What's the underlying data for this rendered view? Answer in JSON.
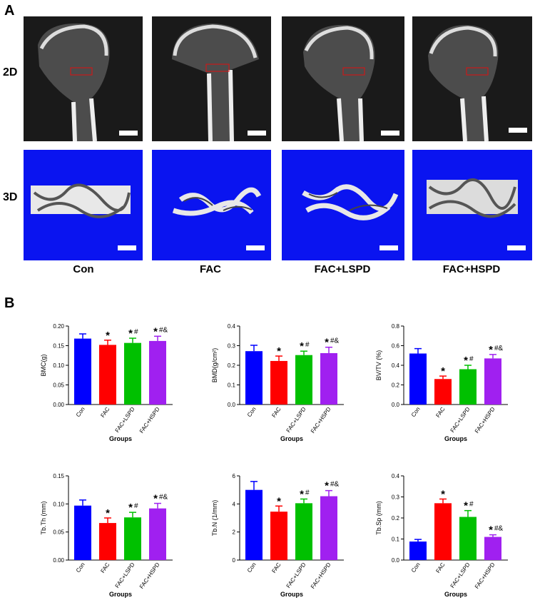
{
  "panels": {
    "a": "A",
    "b": "B"
  },
  "rows": {
    "r2d": "2D",
    "r3d": "3D"
  },
  "groups": [
    "Con",
    "FAC",
    "FAC+LSPD",
    "FAC+HSPD"
  ],
  "colors": {
    "Con": "#0000ff",
    "FAC": "#ff0000",
    "FAC+LSPD": "#00c000",
    "FAC+HSPD": "#a020f0",
    "tile_3d": "#0a14f0"
  },
  "chart_data": [
    {
      "type": "bar",
      "ylabel": "BMC(g)",
      "xlabel": "Groups",
      "categories": [
        "Con",
        "FAC",
        "FAC+LSPD",
        "FAC+HSPD"
      ],
      "values": [
        0.168,
        0.152,
        0.157,
        0.162
      ],
      "errors": [
        0.012,
        0.012,
        0.012,
        0.012
      ],
      "ylim": [
        0,
        0.2
      ],
      "yticks": [
        "0.00",
        "0.05",
        "0.10",
        "0.15",
        "0.20"
      ],
      "annotations": [
        "",
        "*",
        "*#",
        "*#&"
      ]
    },
    {
      "type": "bar",
      "ylabel": "BMD(g/cm²)",
      "xlabel": "Groups",
      "categories": [
        "Con",
        "FAC",
        "FAC+LSPD",
        "FAC+HSPD"
      ],
      "values": [
        0.272,
        0.222,
        0.252,
        0.262
      ],
      "errors": [
        0.03,
        0.025,
        0.02,
        0.03
      ],
      "ylim": [
        0,
        0.4
      ],
      "yticks": [
        "0.0",
        "0.1",
        "0.2",
        "0.3",
        "0.4"
      ],
      "annotations": [
        "",
        "*",
        "*#",
        "*#&"
      ]
    },
    {
      "type": "bar",
      "ylabel": "BV/TV (%)",
      "xlabel": "Groups",
      "categories": [
        "Con",
        "FAC",
        "FAC+LSPD",
        "FAC+HSPD"
      ],
      "values": [
        0.52,
        0.26,
        0.36,
        0.47
      ],
      "errors": [
        0.05,
        0.03,
        0.04,
        0.04
      ],
      "ylim": [
        0,
        0.8
      ],
      "yticks": [
        "0.0",
        "0.2",
        "0.4",
        "0.6",
        "0.8"
      ],
      "annotations": [
        "",
        "*",
        "*#",
        "*#&"
      ]
    },
    {
      "type": "bar",
      "ylabel": "Tb.Th (mm)",
      "xlabel": "Groups",
      "categories": [
        "Con",
        "FAC",
        "FAC+LSPD",
        "FAC+HSPD"
      ],
      "values": [
        0.097,
        0.066,
        0.076,
        0.092
      ],
      "errors": [
        0.01,
        0.009,
        0.009,
        0.009
      ],
      "ylim": [
        0,
        0.15
      ],
      "yticks": [
        "0.00",
        "0.05",
        "0.10",
        "0.15"
      ],
      "annotations": [
        "",
        "*",
        "*#",
        "*#&"
      ]
    },
    {
      "type": "bar",
      "ylabel": "Tb.N (1/mm)",
      "xlabel": "Groups",
      "categories": [
        "Con",
        "FAC",
        "FAC+LSPD",
        "FAC+HSPD"
      ],
      "values": [
        5.0,
        3.45,
        4.05,
        4.55
      ],
      "errors": [
        0.6,
        0.4,
        0.3,
        0.4
      ],
      "ylim": [
        0,
        6
      ],
      "yticks": [
        "0",
        "2",
        "4",
        "6"
      ],
      "annotations": [
        "",
        "*",
        "*#",
        "*#&"
      ]
    },
    {
      "type": "bar",
      "ylabel": "Tb.Sp (mm)",
      "xlabel": "Groups",
      "categories": [
        "Con",
        "FAC",
        "FAC+LSPD",
        "FAC+HSPD"
      ],
      "values": [
        0.088,
        0.27,
        0.205,
        0.11
      ],
      "errors": [
        0.01,
        0.02,
        0.03,
        0.01
      ],
      "ylim": [
        0,
        0.4
      ],
      "yticks": [
        "0.0",
        "0.1",
        "0.2",
        "0.3",
        "0.4"
      ],
      "annotations": [
        "",
        "*",
        "*#",
        "*#&"
      ]
    }
  ]
}
